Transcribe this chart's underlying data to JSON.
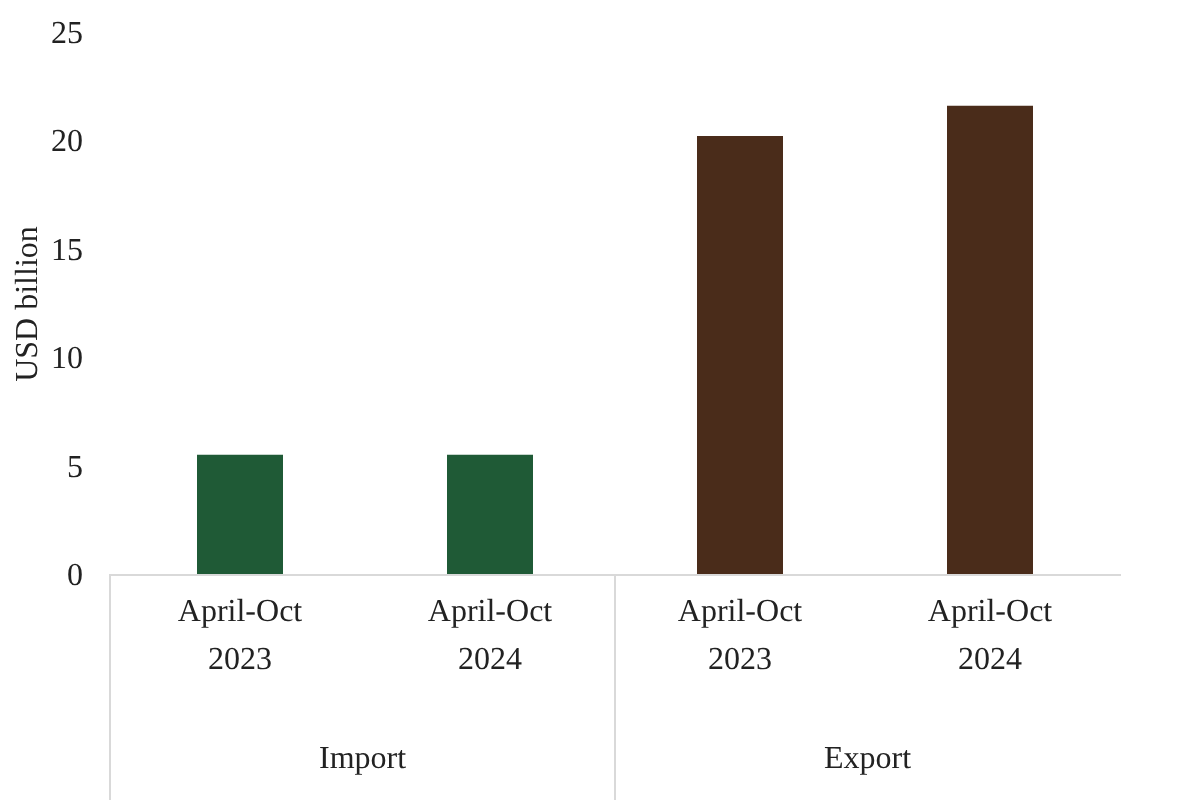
{
  "chart_data": {
    "type": "bar",
    "ylabel": "USD billion",
    "categories": [
      "April-Oct\n2023",
      "April-Oct\n2024",
      "April-Oct\n2023",
      "April-Oct\n2024"
    ],
    "values": [
      5.5,
      5.5,
      20.2,
      21.6
    ],
    "colors": [
      "#1f5a36",
      "#1f5a36",
      "#4a2c1a",
      "#4a2c1a"
    ],
    "ylim": [
      0,
      25
    ],
    "yticks": [
      0,
      5,
      10,
      15,
      20,
      25
    ],
    "grid": false,
    "annotations": [
      "Import",
      "Export"
    ]
  }
}
